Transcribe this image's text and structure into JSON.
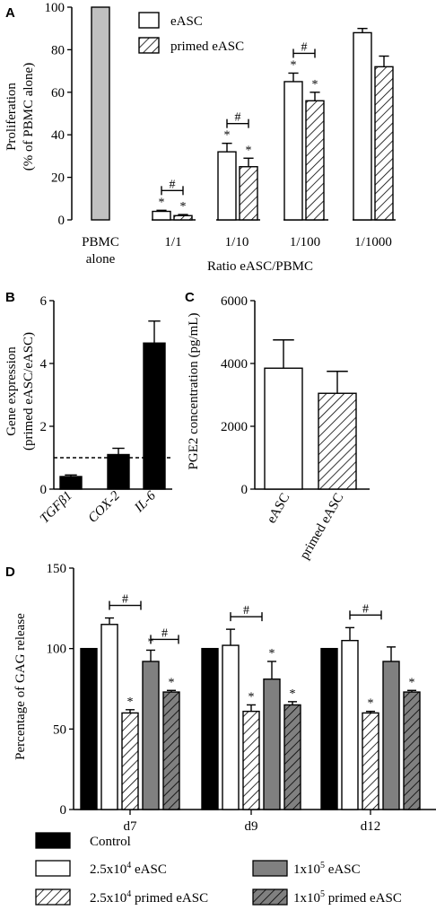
{
  "colors": {
    "bar_grey_light": "#c0c0c0",
    "bar_grey_dark": "#808080",
    "bar_black": "#000000",
    "bar_white": "#ffffff",
    "hatch": "#000000"
  },
  "chart_data": [
    {
      "panel": "A",
      "type": "bar",
      "ylabel_line1": "Proliferation",
      "ylabel_line2": "(% of PBMC alone)",
      "xlabel": "Ratio eASC/PBMC",
      "ylim": [
        0,
        100
      ],
      "yticks": [
        "0",
        "20",
        "40",
        "60",
        "80",
        "100"
      ],
      "categories": [
        "PBMC alone",
        "1/1",
        "1/10",
        "1/100",
        "1/1000"
      ],
      "category_label_pbmc_line1": "PBMC",
      "category_label_pbmc_line2": "alone",
      "reference": {
        "category": "PBMC alone",
        "value": 100
      },
      "series": [
        {
          "name": "eASC",
          "values": [
            null,
            4,
            32,
            65,
            88
          ],
          "errors": [
            null,
            0.5,
            4,
            4,
            2
          ]
        },
        {
          "name": "primed eASC",
          "values": [
            null,
            2,
            25,
            56,
            72
          ],
          "errors": [
            null,
            0.5,
            4,
            4,
            5
          ]
        }
      ],
      "significance": {
        "star": "*",
        "hash": "#",
        "hash_categories": [
          "1/1",
          "1/10",
          "1/100"
        ]
      },
      "legend": [
        "eASC",
        "primed eASC"
      ]
    },
    {
      "panel": "B",
      "type": "bar",
      "ylabel_line1": "Gene expression",
      "ylabel_line2": "(primed eASC/eASC)",
      "ylim": [
        0,
        6
      ],
      "yticks": [
        "0",
        "2",
        "4",
        "6"
      ],
      "categories": [
        "TGFβ1",
        "COX-2",
        "IL-6"
      ],
      "values": [
        0.4,
        1.1,
        4.65
      ],
      "errors": [
        0.05,
        0.2,
        0.7
      ],
      "reference_line": 1
    },
    {
      "panel": "C",
      "type": "bar",
      "ylabel": "PGE2 concentration (pg/mL)",
      "ylim": [
        0,
        6000
      ],
      "yticks": [
        "0",
        "2000",
        "4000",
        "6000"
      ],
      "categories": [
        "eASC",
        "primed eASC"
      ],
      "values": [
        3850,
        3050
      ],
      "errors": [
        900,
        700
      ]
    },
    {
      "panel": "D",
      "type": "bar",
      "ylabel": "Percentage of GAG release",
      "ylim": [
        0,
        150
      ],
      "yticks": [
        "0",
        "50",
        "100",
        "150"
      ],
      "categories": [
        "d7",
        "d9",
        "d12"
      ],
      "series": [
        {
          "name": "Control",
          "values": [
            100,
            100,
            100
          ],
          "errors": [
            0,
            0,
            0
          ]
        },
        {
          "name": "2.5x10^4 eASC",
          "values": [
            115,
            102,
            105
          ],
          "errors": [
            4,
            10,
            8
          ]
        },
        {
          "name": "2.5x10^4 primed eASC",
          "values": [
            60,
            61,
            60
          ],
          "errors": [
            2,
            4,
            1
          ]
        },
        {
          "name": "1x10^5 eASC",
          "values": [
            92,
            81,
            92
          ],
          "errors": [
            7,
            11,
            9
          ]
        },
        {
          "name": "1x10^5 primed eASC",
          "values": [
            73,
            65,
            73
          ],
          "errors": [
            1,
            2,
            1
          ]
        }
      ],
      "significance": {
        "star": "*",
        "hash": "#"
      },
      "legend": [
        {
          "base": "Control",
          "sup": "",
          "rest": ""
        },
        {
          "base": "2.5x10",
          "sup": "4",
          "rest": " eASC"
        },
        {
          "base": "2.5x10",
          "sup": "4",
          "rest": " primed eASC"
        },
        {
          "base": "1x10",
          "sup": "5",
          "rest": " eASC"
        },
        {
          "base": "1x10",
          "sup": "5",
          "rest": " primed eASC"
        }
      ]
    }
  ]
}
